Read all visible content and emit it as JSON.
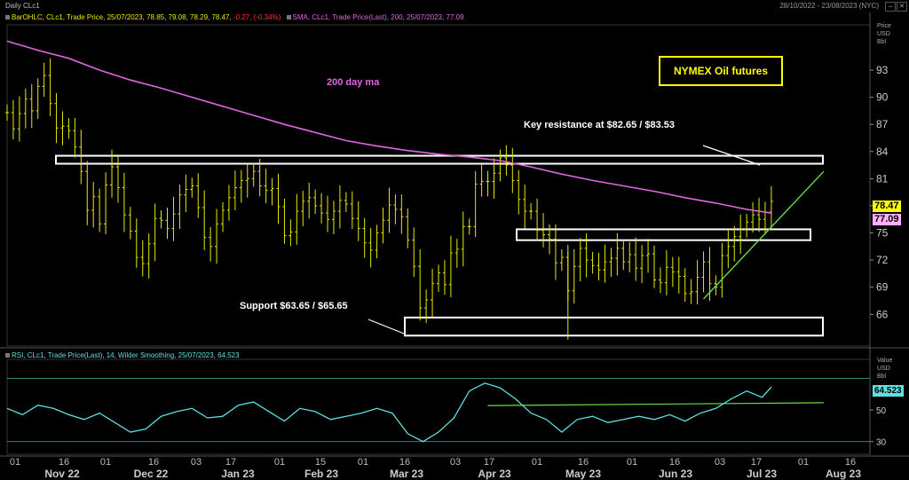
{
  "header": {
    "title": "Daily CLc1",
    "date_range": "28/10/2022 - 23/08/2023 (NYC)"
  },
  "price_legend": {
    "bar_text": "BarOHLC, CLc1, Trade Price, 25/07/2023, 78.85, 79.08, 78.29, 78.47,",
    "bar_change": "-0.27, (-0.34%)",
    "sma_text": "SMA, CLc1, Trade Price(Last), 200, 25/07/2023, 77.09"
  },
  "rsi_legend": {
    "text": "RSI, CLc1, Trade Price(Last), 14, Wilder Smoothing, 25/07/2023, 64.523"
  },
  "price_axis": {
    "title_lines": [
      "Price",
      "USD",
      "Bbl"
    ],
    "last_price": "78.47",
    "sma_value": "77.09"
  },
  "rsi_axis": {
    "title_lines": [
      "Value",
      "USD",
      "Bbl"
    ],
    "last_value": "64.523"
  },
  "annotations": {
    "title": "NYMEX Oil futures",
    "ma_label": "200 day ma",
    "resistance": "Key resistance at $82.65 / $83.53",
    "support": "Support $63.65 / $65.65"
  },
  "colors": {
    "bars": "#e8e800",
    "sma": "#e066e0",
    "rsi": "#5ce0e0",
    "trendline": "#66dd44",
    "support_resistance": "#ffffff",
    "last_price_bg": "#ffff00",
    "sma_bg": "#ffb0ff",
    "rsi_bg": "#5ce0e0",
    "change_negative": "#ff3333"
  },
  "chart_data": {
    "type": "ohlc",
    "price_panel": {
      "ylim": [
        62.5,
        98
      ],
      "y_ticks": [
        66,
        69,
        72,
        75,
        78,
        81,
        84,
        87,
        90,
        93
      ],
      "grid": false,
      "close_series": [
        [
          0,
          88.3
        ],
        [
          2,
          86.5
        ],
        [
          4,
          88.2
        ],
        [
          6,
          89.8
        ],
        [
          8,
          88.5
        ],
        [
          10,
          91.2
        ],
        [
          12,
          92.4
        ],
        [
          14,
          89.3
        ],
        [
          16,
          86.6
        ],
        [
          18,
          86.8
        ],
        [
          20,
          86.3
        ],
        [
          22,
          84.5
        ],
        [
          24,
          81.8
        ],
        [
          26,
          77.5
        ],
        [
          28,
          79.0
        ],
        [
          30,
          76.0
        ],
        [
          32,
          80.3
        ],
        [
          34,
          82.3
        ],
        [
          36,
          80.0
        ],
        [
          38,
          77.0
        ],
        [
          40,
          75.2
        ],
        [
          42,
          72.3
        ],
        [
          44,
          71.6
        ],
        [
          46,
          73.8
        ],
        [
          48,
          76.6
        ],
        [
          50,
          76.4
        ],
        [
          52,
          75.5
        ],
        [
          54,
          77.1
        ],
        [
          56,
          79.2
        ],
        [
          58,
          79.8
        ],
        [
          60,
          80.2
        ],
        [
          62,
          77.8
        ],
        [
          64,
          74.5
        ],
        [
          66,
          73.5
        ],
        [
          68,
          76.0
        ],
        [
          70,
          77.5
        ],
        [
          72,
          78.9
        ],
        [
          74,
          80.0
        ],
        [
          76,
          80.8
        ],
        [
          78,
          81.0
        ],
        [
          80,
          81.8
        ],
        [
          82,
          80.2
        ],
        [
          84,
          79.7
        ],
        [
          86,
          79.9
        ],
        [
          88,
          77.9
        ],
        [
          90,
          74.7
        ],
        [
          92,
          75.1
        ],
        [
          94,
          77.4
        ],
        [
          96,
          78.5
        ],
        [
          98,
          78.9
        ],
        [
          100,
          78.0
        ],
        [
          102,
          77.2
        ],
        [
          104,
          76.5
        ],
        [
          106,
          77.4
        ],
        [
          108,
          78.6
        ],
        [
          110,
          78.2
        ],
        [
          112,
          76.6
        ],
        [
          114,
          75.5
        ],
        [
          116,
          73.9
        ],
        [
          118,
          73.1
        ],
        [
          120,
          75.0
        ],
        [
          122,
          76.4
        ],
        [
          124,
          78.1
        ],
        [
          126,
          77.6
        ],
        [
          128,
          76.8
        ],
        [
          130,
          74.2
        ],
        [
          132,
          71.3
        ],
        [
          134,
          66.7
        ],
        [
          136,
          67.6
        ],
        [
          138,
          69.4
        ],
        [
          140,
          70.6
        ],
        [
          142,
          69.3
        ],
        [
          144,
          72.8
        ],
        [
          146,
          73.2
        ],
        [
          148,
          75.7
        ],
        [
          150,
          75.7
        ],
        [
          152,
          80.4
        ],
        [
          154,
          80.7
        ],
        [
          156,
          80.7
        ],
        [
          158,
          81.6
        ],
        [
          160,
          83.3
        ],
        [
          162,
          82.5
        ],
        [
          164,
          80.8
        ],
        [
          166,
          78.7
        ],
        [
          168,
          77.4
        ],
        [
          170,
          77.4
        ],
        [
          172,
          75.3
        ],
        [
          174,
          74.8
        ],
        [
          176,
          74.3
        ],
        [
          178,
          71.7
        ],
        [
          180,
          72.3
        ],
        [
          182,
          68.6
        ],
        [
          184,
          71.3
        ],
        [
          186,
          73.3
        ],
        [
          188,
          72.0
        ],
        [
          190,
          71.4
        ],
        [
          192,
          70.9
        ],
        [
          194,
          71.8
        ],
        [
          196,
          72.2
        ],
        [
          198,
          73.3
        ],
        [
          200,
          71.8
        ],
        [
          202,
          72.6
        ],
        [
          204,
          71.1
        ],
        [
          206,
          72.5
        ],
        [
          208,
          72.7
        ],
        [
          210,
          69.8
        ],
        [
          212,
          69.5
        ],
        [
          214,
          71.2
        ],
        [
          216,
          70.7
        ],
        [
          218,
          70.2
        ],
        [
          220,
          68.3
        ],
        [
          222,
          68.5
        ],
        [
          224,
          70.1
        ],
        [
          226,
          71.8
        ],
        [
          228,
          69.4
        ],
        [
          230,
          69.0
        ],
        [
          232,
          72.5
        ],
        [
          234,
          73.5
        ],
        [
          236,
          74.6
        ],
        [
          238,
          75.4
        ],
        [
          240,
          76.2
        ],
        [
          242,
          77.0
        ],
        [
          244,
          76.5
        ],
        [
          246,
          77.3
        ],
        [
          248,
          78.5
        ]
      ],
      "sma_200": [
        [
          0,
          96.2
        ],
        [
          10,
          95.2
        ],
        [
          20,
          94.3
        ],
        [
          30,
          93.0
        ],
        [
          40,
          91.9
        ],
        [
          50,
          91.0
        ],
        [
          60,
          90.0
        ],
        [
          70,
          89.0
        ],
        [
          80,
          88.0
        ],
        [
          90,
          87.0
        ],
        [
          100,
          86.1
        ],
        [
          110,
          85.2
        ],
        [
          120,
          84.6
        ],
        [
          130,
          84.1
        ],
        [
          140,
          83.7
        ],
        [
          150,
          83.4
        ],
        [
          160,
          83.0
        ],
        [
          170,
          82.3
        ],
        [
          180,
          81.5
        ],
        [
          190,
          80.8
        ],
        [
          200,
          80.2
        ],
        [
          210,
          79.6
        ],
        [
          220,
          78.9
        ],
        [
          230,
          78.3
        ],
        [
          240,
          77.6
        ],
        [
          248,
          77.2
        ]
      ],
      "resistance_zone": [
        82.65,
        83.53
      ],
      "mid_zone": [
        74.2,
        75.4
      ],
      "support_zone": [
        63.65,
        65.65
      ],
      "trendline": [
        [
          226,
          67.7
        ],
        [
          265,
          81.8
        ]
      ]
    },
    "rsi_panel": {
      "ylim": [
        22,
        82
      ],
      "y_ticks": [
        30,
        50
      ],
      "reference_lines": [
        30,
        70
      ],
      "rsi_series": [
        [
          0,
          51
        ],
        [
          5,
          47
        ],
        [
          10,
          53
        ],
        [
          15,
          51
        ],
        [
          20,
          47
        ],
        [
          25,
          44
        ],
        [
          30,
          48
        ],
        [
          35,
          42
        ],
        [
          40,
          36
        ],
        [
          45,
          38
        ],
        [
          50,
          46
        ],
        [
          55,
          49
        ],
        [
          60,
          51
        ],
        [
          65,
          45
        ],
        [
          70,
          46
        ],
        [
          75,
          53
        ],
        [
          80,
          55
        ],
        [
          85,
          49
        ],
        [
          90,
          43
        ],
        [
          95,
          51
        ],
        [
          100,
          49
        ],
        [
          105,
          44
        ],
        [
          110,
          46
        ],
        [
          115,
          48
        ],
        [
          120,
          51
        ],
        [
          125,
          48
        ],
        [
          130,
          35
        ],
        [
          135,
          30
        ],
        [
          140,
          36
        ],
        [
          145,
          45
        ],
        [
          150,
          62
        ],
        [
          155,
          67
        ],
        [
          160,
          64
        ],
        [
          165,
          57
        ],
        [
          170,
          48
        ],
        [
          175,
          44
        ],
        [
          180,
          36
        ],
        [
          185,
          44
        ],
        [
          190,
          46
        ],
        [
          195,
          42
        ],
        [
          200,
          44
        ],
        [
          205,
          46
        ],
        [
          210,
          44
        ],
        [
          215,
          47
        ],
        [
          220,
          43
        ],
        [
          225,
          48
        ],
        [
          230,
          51
        ],
        [
          235,
          57
        ],
        [
          240,
          62
        ],
        [
          245,
          58
        ],
        [
          248,
          64.5
        ]
      ],
      "trend_segment": [
        [
          156,
          52.8
        ],
        [
          265,
          54.6
        ]
      ]
    },
    "x_axis": {
      "tick_labels": [
        "01",
        "16",
        "01",
        "16",
        "03",
        "17",
        "01",
        "15",
        "01",
        "16",
        "03",
        "17",
        "01",
        "16",
        "01",
        "16",
        "03",
        "17",
        "01",
        "16"
      ],
      "month_labels": [
        "Nov 22",
        "Dec 22",
        "Jan 23",
        "Feb 23",
        "Mar 23",
        "Apr 23",
        "May 23",
        "Jun 23",
        "Jul 23",
        "Aug 23"
      ]
    }
  }
}
